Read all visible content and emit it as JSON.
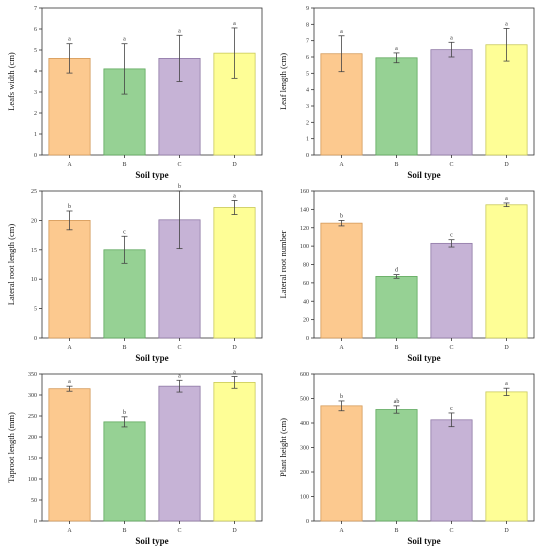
{
  "colors": {
    "bar_fills": [
      "#fcc98f",
      "#96d194",
      "#c6b3d6",
      "#fefe96"
    ],
    "bar_strokes": [
      "#d49a5a",
      "#5fa85d",
      "#8f79a6",
      "#c9c95a"
    ]
  },
  "chart_data": [
    {
      "type": "bar",
      "title": "",
      "xlabel": "Soil type",
      "ylabel": "Leafs width (cm)",
      "categories": [
        "A",
        "B",
        "C",
        "D"
      ],
      "values": [
        4.6,
        4.1,
        4.6,
        4.85
      ],
      "errors": [
        0.7,
        1.2,
        1.1,
        1.2
      ],
      "significance": [
        "a",
        "a",
        "a",
        "a"
      ],
      "ylim": [
        0,
        7
      ],
      "yticks": [
        0,
        1,
        2,
        3,
        4,
        5,
        6,
        7
      ],
      "grid": false
    },
    {
      "type": "bar",
      "title": "",
      "xlabel": "Soil type",
      "ylabel": "Leaf length (cm)",
      "categories": [
        "A",
        "B",
        "C",
        "D"
      ],
      "values": [
        6.2,
        5.95,
        6.45,
        6.75
      ],
      "errors": [
        1.1,
        0.3,
        0.45,
        1.0
      ],
      "significance": [
        "a",
        "a",
        "a",
        "a"
      ],
      "ylim": [
        0,
        9
      ],
      "yticks": [
        0,
        1,
        2,
        3,
        4,
        5,
        6,
        7,
        8,
        9
      ],
      "grid": false
    },
    {
      "type": "bar",
      "title": "",
      "xlabel": "Soil type",
      "ylabel": "Lateral root length (cm)",
      "categories": [
        "A",
        "B",
        "C",
        "D"
      ],
      "values": [
        20,
        15,
        20.1,
        22.2
      ],
      "errors": [
        1.6,
        2.3,
        4.9,
        1.2
      ],
      "significance": [
        "b",
        "c",
        "b",
        "a"
      ],
      "ylim": [
        0,
        25
      ],
      "yticks": [
        0,
        5,
        10,
        15,
        20,
        25
      ],
      "grid": false
    },
    {
      "type": "bar",
      "title": "",
      "xlabel": "Soil type",
      "ylabel": "Lateral root number",
      "categories": [
        "A",
        "B",
        "C",
        "D"
      ],
      "values": [
        125,
        67,
        103,
        145
      ],
      "errors": [
        3,
        2,
        4,
        2
      ],
      "significance": [
        "b",
        "d",
        "c",
        "a"
      ],
      "ylim": [
        0,
        160
      ],
      "yticks": [
        0,
        20,
        40,
        60,
        80,
        100,
        120,
        140,
        160
      ],
      "grid": false
    },
    {
      "type": "bar",
      "title": "",
      "xlabel": "Soil type",
      "ylabel": "Taproot length (mm)",
      "categories": [
        "A",
        "B",
        "C",
        "D"
      ],
      "values": [
        315,
        236,
        321,
        330
      ],
      "errors": [
        6,
        12,
        14,
        14
      ],
      "significance": [
        "a",
        "b",
        "a",
        "a"
      ],
      "ylim": [
        0,
        350
      ],
      "yticks": [
        0,
        50,
        100,
        150,
        200,
        250,
        300,
        350
      ],
      "grid": false
    },
    {
      "type": "bar",
      "title": "",
      "xlabel": "Soil type",
      "ylabel": "Plant height (cm)",
      "categories": [
        "A",
        "B",
        "C",
        "D"
      ],
      "values": [
        470,
        455,
        413,
        527
      ],
      "errors": [
        20,
        15,
        28,
        15
      ],
      "significance": [
        "b",
        "ab",
        "c",
        "a"
      ],
      "ylim": [
        0,
        600
      ],
      "yticks": [
        0,
        100,
        200,
        300,
        400,
        500,
        600
      ],
      "grid": false
    }
  ]
}
